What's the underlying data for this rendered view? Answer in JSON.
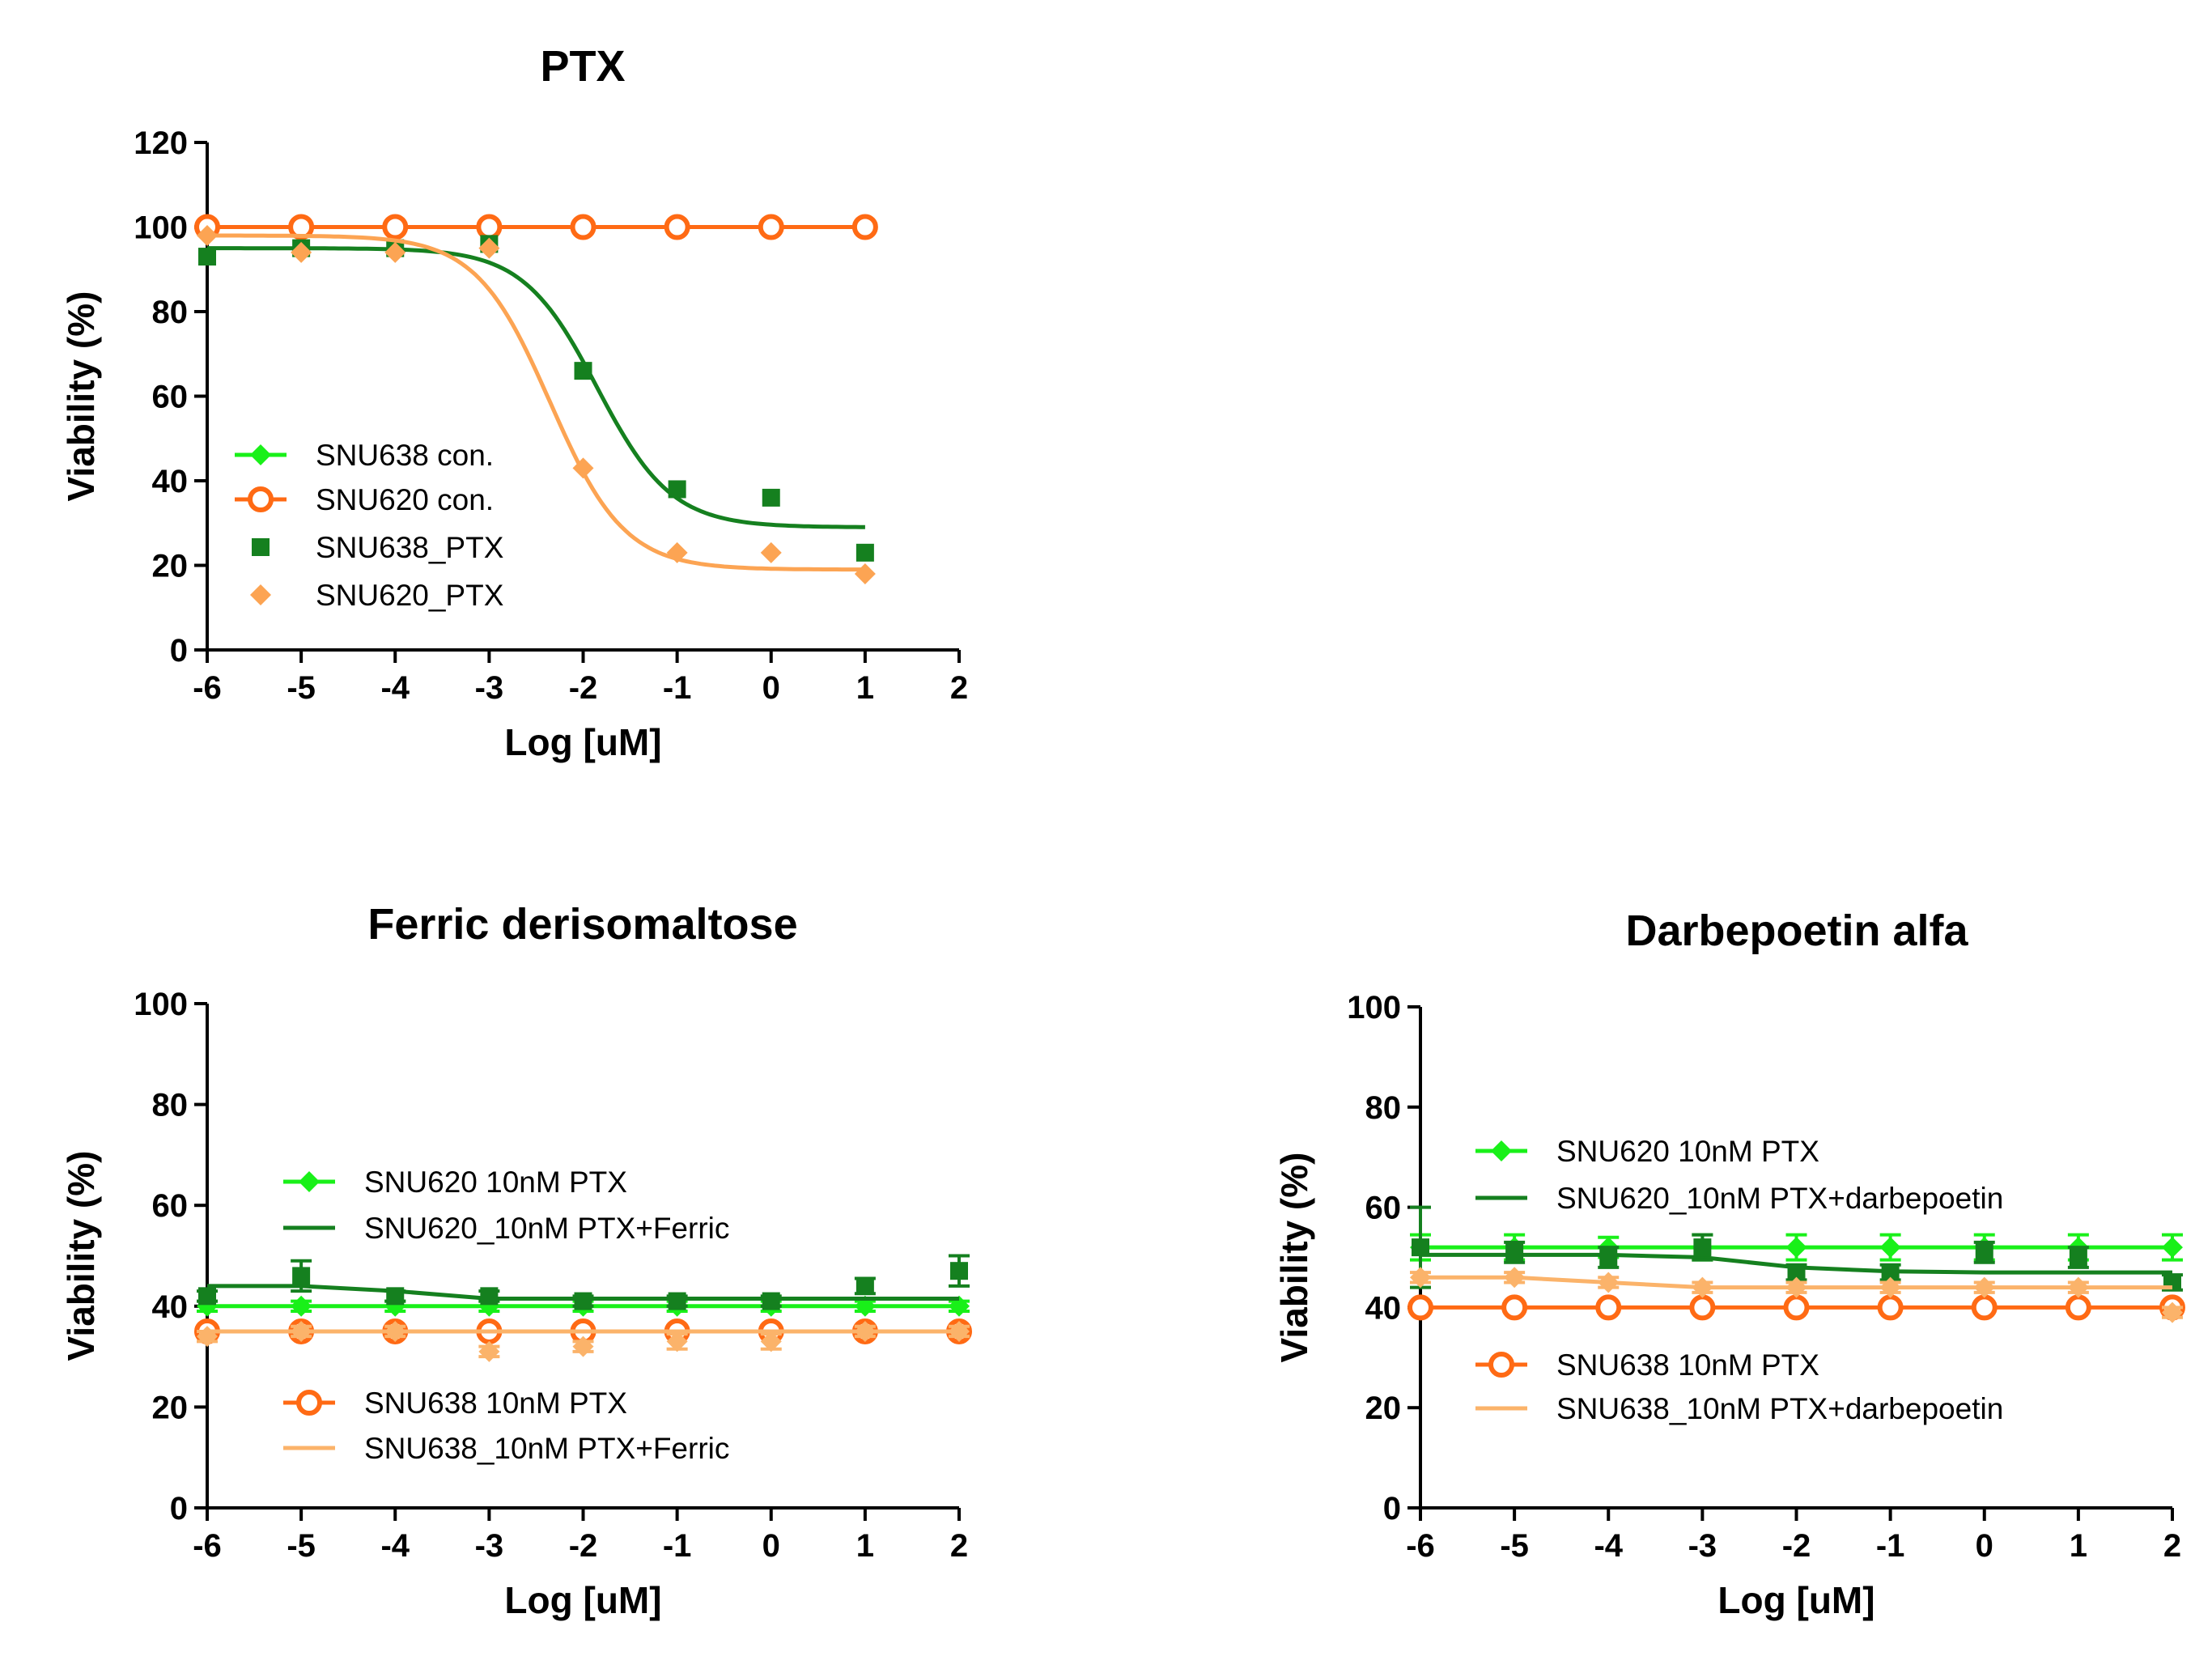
{
  "colors": {
    "bright_green": "#19f019",
    "dark_green": "#15801f",
    "orange": "#ff6a14",
    "light_orange": "#fbb36a",
    "marker_orange": "#fca453"
  },
  "chart_data": [
    {
      "type": "line",
      "title": "PTX",
      "xlabel": "Log [uM]",
      "ylabel": "Viability (%)",
      "xlim": [
        -6,
        2
      ],
      "ylim": [
        0,
        120
      ],
      "xticks": [
        "-6",
        "-5",
        "-4",
        "-3",
        "-2",
        "-1",
        "0",
        "1",
        "2"
      ],
      "yticks": [
        "0",
        "20",
        "40",
        "60",
        "80",
        "100",
        "120"
      ],
      "legend_position": "lower-left",
      "series": [
        {
          "name": "SNU638 con.",
          "color": "#19f019",
          "marker": "diamond",
          "line": true,
          "x": [
            -6,
            -5,
            -4,
            -3,
            -2,
            -1,
            0,
            1
          ],
          "values": [
            100,
            100,
            100,
            100,
            100,
            100,
            100,
            100
          ]
        },
        {
          "name": "SNU620 con.",
          "color": "#ff6a14",
          "marker": "open-circle",
          "line": true,
          "x": [
            -6,
            -5,
            -4,
            -3,
            -2,
            -1,
            0,
            1
          ],
          "values": [
            100,
            100,
            100,
            100,
            100,
            100,
            100,
            100
          ]
        },
        {
          "name": "SNU638_PTX",
          "color": "#15801f",
          "marker": "square",
          "line": false,
          "x": [
            -6,
            -5,
            -4,
            -3,
            -2,
            -1,
            0,
            1
          ],
          "values": [
            93,
            95,
            95,
            96,
            66,
            38,
            36,
            23
          ],
          "fit": {
            "top": 95,
            "bottom": 29,
            "logIC50": -1.85,
            "hill": 1.1,
            "x_range": [
              -6,
              1
            ]
          }
        },
        {
          "name": "SNU620_PTX",
          "color": "#fca453",
          "marker": "diamond",
          "line": false,
          "x": [
            -6,
            -5,
            -4,
            -3,
            -2,
            -1,
            0,
            1
          ],
          "values": [
            98,
            94,
            94,
            95,
            43,
            23,
            23,
            18
          ],
          "fit": {
            "top": 98,
            "bottom": 19,
            "logIC50": -2.35,
            "hill": 1.1,
            "x_range": [
              -6,
              1
            ]
          }
        }
      ]
    },
    {
      "type": "line",
      "title": "Ferric derisomaltose",
      "xlabel": "Log [uM]",
      "ylabel": "Viability (%)",
      "xlim": [
        -6,
        2
      ],
      "ylim": [
        0,
        100
      ],
      "xticks": [
        "-6",
        "-5",
        "-4",
        "-3",
        "-2",
        "-1",
        "0",
        "1",
        "2"
      ],
      "yticks": [
        "0",
        "20",
        "40",
        "60",
        "80",
        "100"
      ],
      "legend_position": "center-left",
      "series": [
        {
          "name": "SNU620 10nM PTX",
          "color": "#19f019",
          "marker": "diamond",
          "line": true,
          "x": [
            -6,
            -5,
            -4,
            -3,
            -2,
            -1,
            0,
            1,
            2
          ],
          "values": [
            40,
            40,
            40,
            40,
            40,
            40,
            40,
            40,
            40
          ],
          "errors": [
            1,
            1,
            1,
            1,
            1,
            1,
            1,
            1,
            1
          ]
        },
        {
          "name": "SNU620_10nM PTX+Ferric",
          "color": "#15801f",
          "marker": "square",
          "line": true,
          "x": [
            -6,
            -5,
            -4,
            -3,
            -2,
            -1,
            0,
            1,
            2
          ],
          "values": [
            42,
            46,
            42,
            42,
            41,
            41,
            41,
            44,
            47
          ],
          "errors": [
            1,
            3,
            1,
            1,
            1,
            1,
            1,
            1.5,
            3
          ],
          "fit_values": [
            44,
            44,
            43,
            41.5,
            41.5,
            41.5,
            41.5,
            41.5,
            41.5
          ]
        },
        {
          "name": "SNU638 10nM PTX",
          "color": "#ff6a14",
          "marker": "open-circle",
          "line": true,
          "x": [
            -6,
            -5,
            -4,
            -3,
            -2,
            -1,
            0,
            1,
            2
          ],
          "values": [
            35,
            35,
            35,
            35,
            35,
            35,
            35,
            35,
            35
          ],
          "errors": [
            1,
            1,
            1,
            1,
            1,
            1,
            1,
            1,
            1
          ]
        },
        {
          "name": "SNU638_10nM PTX+Ferric",
          "color": "#fbb36a",
          "marker": "diamond",
          "line": true,
          "x": [
            -6,
            -5,
            -4,
            -3,
            -2,
            -1,
            0,
            1,
            2
          ],
          "values": [
            34,
            35,
            35,
            31,
            32,
            33,
            33,
            35,
            35
          ],
          "errors": [
            1,
            1,
            1,
            1,
            1,
            1.5,
            1.5,
            1,
            1
          ],
          "fit_values": [
            35,
            35,
            35,
            35,
            35,
            35,
            35,
            35,
            35
          ]
        }
      ]
    },
    {
      "type": "line",
      "title": "Darbepoetin alfa",
      "xlabel": "Log [uM]",
      "ylabel": "Viability (%)",
      "xlim": [
        -6,
        2
      ],
      "ylim": [
        0,
        100
      ],
      "xticks": [
        "-6",
        "-5",
        "-4",
        "-3",
        "-2",
        "-1",
        "0",
        "1",
        "2"
      ],
      "yticks": [
        "0",
        "20",
        "40",
        "60",
        "80",
        "100"
      ],
      "legend_position": "center-left",
      "series": [
        {
          "name": "SNU620 10nM PTX",
          "color": "#19f019",
          "marker": "diamond",
          "line": true,
          "x": [
            -6,
            -5,
            -4,
            -3,
            -2,
            -1,
            0,
            1,
            2
          ],
          "values": [
            52,
            52,
            52,
            52,
            52,
            52,
            52,
            52,
            52
          ],
          "errors": [
            2.5,
            2.5,
            2,
            2.5,
            2.5,
            2.5,
            2.5,
            2.5,
            2.5
          ]
        },
        {
          "name": "SNU620_10nM PTX+darbepoetin",
          "color": "#15801f",
          "marker": "square",
          "line": true,
          "x": [
            -6,
            -5,
            -4,
            -3,
            -2,
            -1,
            0,
            1,
            2
          ],
          "values": [
            52,
            51,
            50,
            52,
            47,
            47,
            51,
            50,
            45
          ],
          "errors": [
            8,
            2,
            2,
            2.5,
            1.5,
            1.5,
            2,
            2,
            1.5
          ],
          "fit_values": [
            50.5,
            50.5,
            50.5,
            50,
            48,
            47.2,
            47,
            47,
            47
          ]
        },
        {
          "name": "SNU638 10nM PTX",
          "color": "#ff6a14",
          "marker": "open-circle",
          "line": true,
          "x": [
            -6,
            -5,
            -4,
            -3,
            -2,
            -1,
            0,
            1,
            2
          ],
          "values": [
            40,
            40,
            40,
            40,
            40,
            40,
            40,
            40,
            40
          ],
          "errors": [
            1,
            1,
            1,
            1,
            1,
            1,
            1,
            1,
            1
          ]
        },
        {
          "name": "SNU638_10nM PTX+darbepoetin",
          "color": "#fbb36a",
          "marker": "diamond",
          "line": true,
          "x": [
            -6,
            -5,
            -4,
            -3,
            -2,
            -1,
            0,
            1,
            2
          ],
          "values": [
            46,
            46,
            45,
            44,
            44,
            44,
            44,
            44,
            39
          ],
          "errors": [
            1,
            1,
            1,
            1,
            1,
            1,
            1,
            1,
            1
          ],
          "fit_values": [
            46,
            46,
            45,
            44,
            44,
            44,
            44,
            44,
            44
          ]
        }
      ]
    }
  ]
}
